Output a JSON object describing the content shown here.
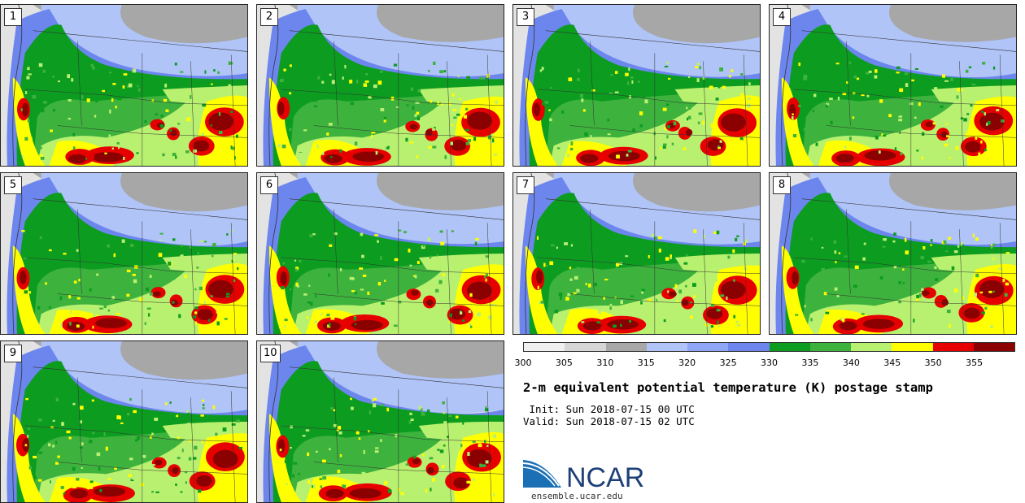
{
  "map_panels": [
    {
      "label": "1"
    },
    {
      "label": "2"
    },
    {
      "label": "3"
    },
    {
      "label": "4"
    },
    {
      "label": "5"
    },
    {
      "label": "6"
    },
    {
      "label": "7"
    },
    {
      "label": "8"
    },
    {
      "label": "9"
    },
    {
      "label": "10"
    }
  ],
  "colorbar": {
    "units": "K",
    "tick_labels": [
      "300",
      "305",
      "310",
      "315",
      "320",
      "325",
      "330",
      "335",
      "340",
      "345",
      "350",
      "355"
    ],
    "colors": [
      "#f0f0f0",
      "#d6d6d6",
      "#a8a8a8",
      "#b0c4f8",
      "#8ea6f5",
      "#6c86ee",
      "#0c9c20",
      "#3db23d",
      "#b8f070",
      "#ffff00",
      "#e60000",
      "#8b0000"
    ]
  },
  "title": "2-m equivalent potential temperature (K) postage stamp",
  "init_time": " Init: Sun 2018-07-15 00 UTC",
  "valid_time": "Valid: Sun 2018-07-15 02 UTC",
  "logo": {
    "text": "NCAR",
    "url": "ensemble.ucar.edu",
    "brand_color": "#1b6fb5"
  }
}
